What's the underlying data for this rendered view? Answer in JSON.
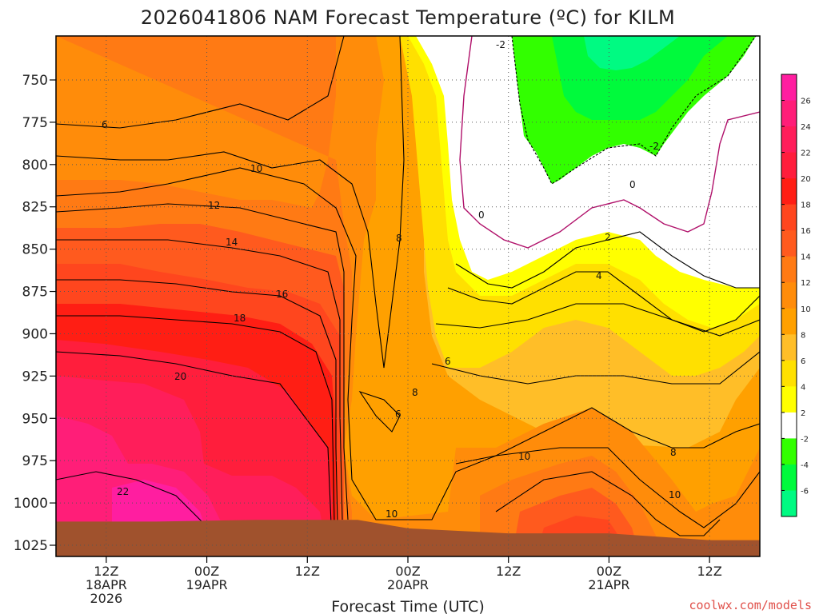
{
  "chart_data": {
    "type": "heatmap",
    "title": "2026041806 NAM Forecast Temperature (ºC) for KILM",
    "xlabel": "Forecast Time (UTC)",
    "ylabel": "",
    "credit": "coolwx.com/models",
    "y_axis": {
      "unit": "hPa",
      "inverted": true,
      "ticks": [
        750,
        775,
        800,
        825,
        850,
        875,
        900,
        925,
        950,
        975,
        1000,
        1025
      ]
    },
    "x_axis": {
      "unit": "hours since 2026041806",
      "range": [
        0,
        84
      ],
      "ticks": [
        {
          "hour": 6,
          "line1": "12Z",
          "line2": "18APR",
          "line3": "2026"
        },
        {
          "hour": 18,
          "line1": "00Z",
          "line2": "19APR",
          "line3": ""
        },
        {
          "hour": 30,
          "line1": "12Z",
          "line2": "",
          "line3": ""
        },
        {
          "hour": 42,
          "line1": "00Z",
          "line2": "20APR",
          "line3": ""
        },
        {
          "hour": 54,
          "line1": "12Z",
          "line2": "",
          "line3": ""
        },
        {
          "hour": 66,
          "line1": "00Z",
          "line2": "21APR",
          "line3": ""
        },
        {
          "hour": 78,
          "line1": "12Z",
          "line2": "",
          "line3": ""
        }
      ]
    },
    "grid": true,
    "legend": "right colorbar",
    "colorbar": {
      "ticks": [
        26,
        24,
        22,
        20,
        18,
        16,
        14,
        12,
        10,
        8,
        6,
        4,
        2,
        -2,
        -4,
        -6
      ],
      "bands": [
        {
          "low": 26,
          "high": 28,
          "color": "#ff1ea0"
        },
        {
          "low": 24,
          "high": 26,
          "color": "#ff1e78"
        },
        {
          "low": 22,
          "high": 24,
          "color": "#ff1e5a"
        },
        {
          "low": 20,
          "high": 22,
          "color": "#ff1e3c"
        },
        {
          "low": 18,
          "high": 20,
          "color": "#ff1e14"
        },
        {
          "low": 16,
          "high": 18,
          "color": "#ff461e"
        },
        {
          "low": 14,
          "high": 16,
          "color": "#ff5a1e"
        },
        {
          "low": 12,
          "high": 14,
          "color": "#ff7a14"
        },
        {
          "low": 10,
          "high": 12,
          "color": "#ff8c0a"
        },
        {
          "low": 8,
          "high": 10,
          "color": "#ffa000"
        },
        {
          "low": 6,
          "high": 8,
          "color": "#ffbe28"
        },
        {
          "low": 4,
          "high": 6,
          "color": "#ffe000"
        },
        {
          "low": 2,
          "high": 4,
          "color": "#ffff00"
        },
        {
          "low": -2,
          "high": 2,
          "color": "#ffffff"
        },
        {
          "low": -4,
          "high": -2,
          "color": "#32ff00"
        },
        {
          "low": -6,
          "high": -4,
          "color": "#00fa3c"
        },
        {
          "low": -8,
          "high": -6,
          "color": "#00fa82"
        }
      ]
    },
    "contour_labels": [
      "-2",
      "6",
      "10",
      "12",
      "14",
      "16",
      "18",
      "20",
      "22",
      "8",
      "6",
      "0",
      "0",
      "-2",
      "2",
      "4",
      "6",
      "8",
      "10",
      "10",
      "8",
      "10",
      "6"
    ],
    "ground_color": "#a0522d",
    "surface_pressure_hPa": [
      {
        "hour": 0,
        "p": 1011
      },
      {
        "hour": 12,
        "p": 1011
      },
      {
        "hour": 24,
        "p": 1010
      },
      {
        "hour": 36,
        "p": 1010
      },
      {
        "hour": 42,
        "p": 1015
      },
      {
        "hour": 54,
        "p": 1018
      },
      {
        "hour": 66,
        "p": 1018
      },
      {
        "hour": 78,
        "p": 1022
      },
      {
        "hour": 84,
        "p": 1022
      }
    ]
  }
}
